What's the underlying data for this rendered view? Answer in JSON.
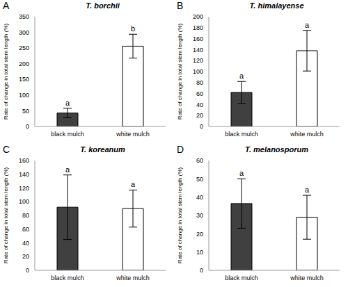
{
  "chart_data": [
    {
      "type": "bar",
      "panel_label": "A",
      "title": "T. borchii",
      "y_label": "Rate of change in total stem length (%)",
      "categories": [
        "black mulch",
        "white mulch"
      ],
      "values": [
        43,
        256
      ],
      "errors": [
        15,
        38
      ],
      "letters": [
        "a",
        "b"
      ],
      "colors": [
        "#404040",
        "#ffffff"
      ],
      "ylim": [
        0,
        350
      ],
      "yticks": [
        0,
        50,
        100,
        150,
        200,
        250,
        300,
        350
      ]
    },
    {
      "type": "bar",
      "panel_label": "B",
      "title": "T. himalayense",
      "y_label": "Rate of change in total stem length (%)",
      "categories": [
        "black mulch",
        "white mulch"
      ],
      "values": [
        62,
        138
      ],
      "errors": [
        20,
        37
      ],
      "letters": [
        "a",
        "a"
      ],
      "colors": [
        "#404040",
        "#ffffff"
      ],
      "ylim": [
        0,
        200
      ],
      "yticks": [
        0,
        20,
        40,
        60,
        80,
        100,
        120,
        140,
        160,
        180,
        200
      ]
    },
    {
      "type": "bar",
      "panel_label": "C",
      "title": "T. koreanum",
      "y_label": "Rate of change in total stem length (%)",
      "categories": [
        "black mulch",
        "white mulch"
      ],
      "values": [
        92,
        90
      ],
      "errors": [
        47,
        27
      ],
      "letters": [
        "a",
        "a"
      ],
      "colors": [
        "#404040",
        "#ffffff"
      ],
      "ylim": [
        0,
        160
      ],
      "yticks": [
        0,
        20,
        40,
        60,
        80,
        100,
        120,
        140,
        160
      ]
    },
    {
      "type": "bar",
      "panel_label": "D",
      "title": "T. melanosporum",
      "y_label": "Rate of change in total stem length (%)",
      "categories": [
        "black mulch",
        "white mulch"
      ],
      "values": [
        36.5,
        29
      ],
      "errors": [
        13.5,
        12
      ],
      "letters": [
        "a",
        "a"
      ],
      "colors": [
        "#404040",
        "#ffffff"
      ],
      "ylim": [
        0,
        60
      ],
      "yticks": [
        0,
        10,
        20,
        30,
        40,
        50,
        60
      ]
    }
  ]
}
